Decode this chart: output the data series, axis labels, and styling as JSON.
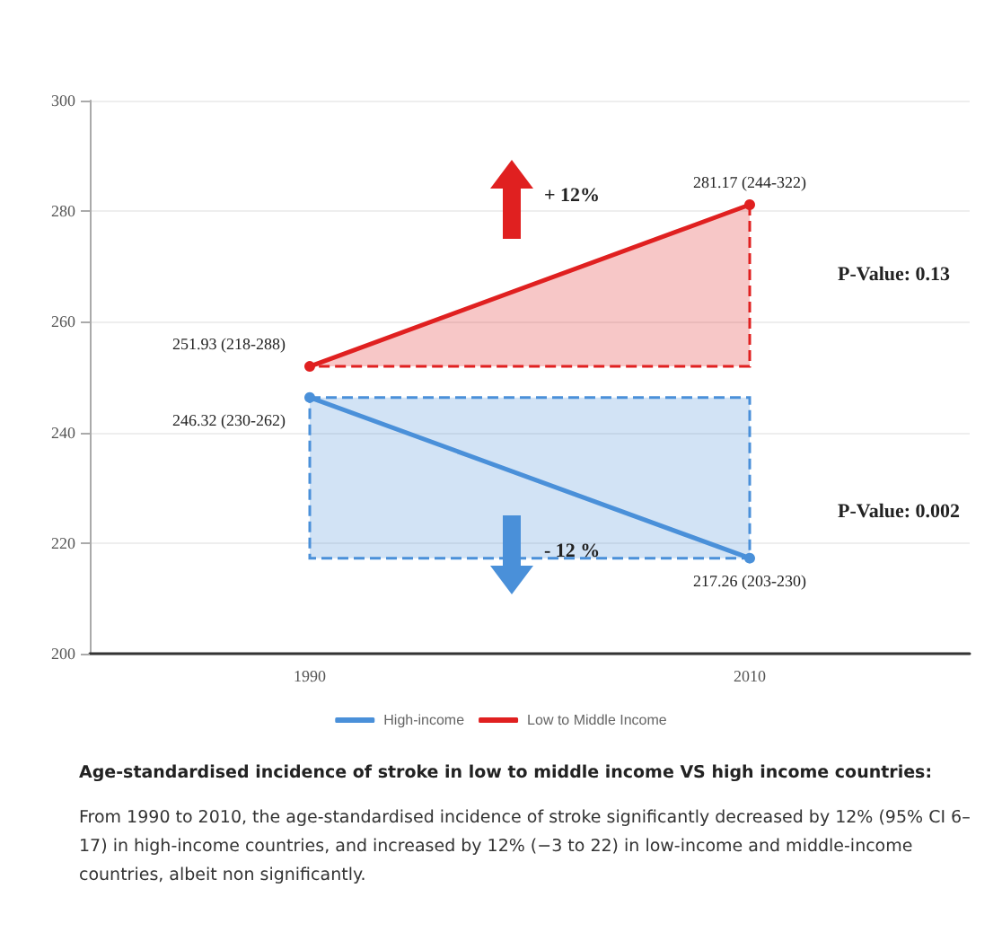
{
  "chart_data": {
    "type": "line",
    "title": "Age-standardised incidence of stroke in low to middle income VS high income countries:",
    "categories": [
      "1990",
      "2010"
    ],
    "series": [
      {
        "name": "High-income",
        "color": "#4a90d9",
        "values": [
          246.32,
          217.26
        ],
        "value_labels": [
          "246.32 (230-262)",
          "217.26 (203-230)"
        ],
        "lower": [
          217.26,
          217.26
        ],
        "upper": [
          246.32,
          246.32
        ]
      },
      {
        "name": "Low to Middle Income",
        "color": "#e02020",
        "values": [
          251.93,
          281.17
        ],
        "value_labels": [
          "251.93 (218-288)",
          "281.17 (244-322)"
        ],
        "lower": [
          251.93,
          251.93
        ],
        "upper": [
          251.93,
          281.17
        ]
      }
    ],
    "ylim": [
      200,
      300
    ],
    "yticks": [
      200,
      220,
      240,
      260,
      280,
      300
    ],
    "grid": "y",
    "legend": "bottom",
    "marker": "circle",
    "line_style": "solid",
    "annotations": [
      "+ 12%",
      "- 12 %",
      "P-Value: 0.13",
      "P-Value: 0.002",
      "From 1990 to 2010, the age-standardised incidence of stroke significantly decreased by 12% (95% CI 6–17) in high-income countries, and increased by 12% (−3 to 22) in low-income and middle-income countries, albeit non significantly."
    ]
  }
}
